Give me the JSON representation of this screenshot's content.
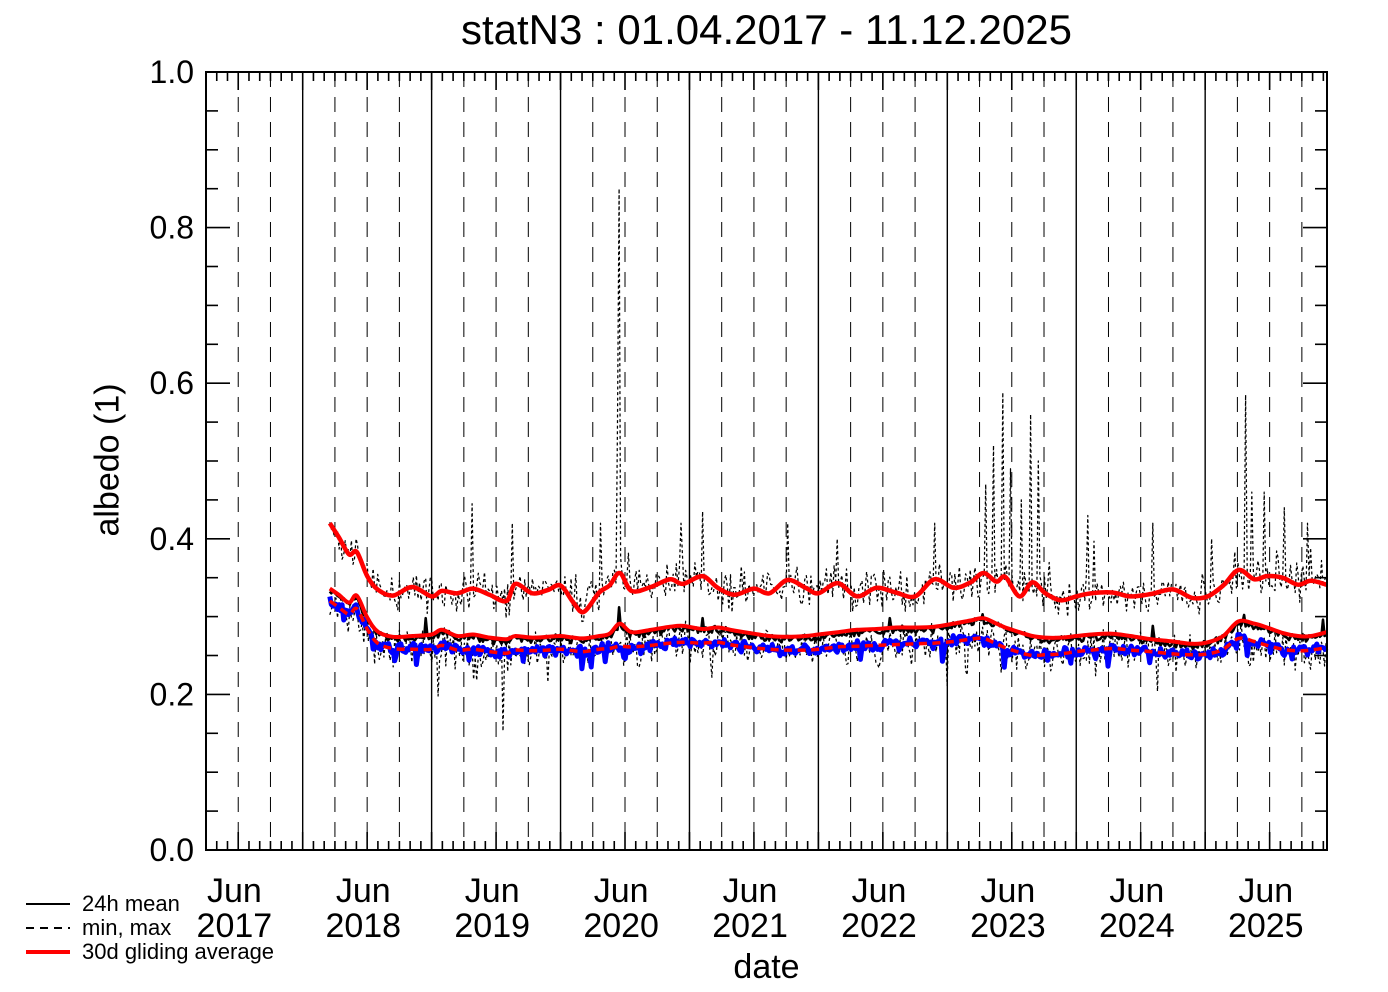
{
  "title": "statN3 : 01.04.2017 - 11.12.2025",
  "axes": {
    "x_label": "date",
    "y_label": "albedo (1)"
  },
  "legend": [
    {
      "label": "24h mean",
      "color": "#000000",
      "style": "solid"
    },
    {
      "label": "min, max",
      "color": "#000000",
      "style": "dashed"
    },
    {
      "label": "30d gliding average",
      "color": "#ff0000",
      "style": "solid"
    }
  ],
  "colors": {
    "mean_line": "#000000",
    "minmax_line": "#000000",
    "gliding_average": "#ff0000",
    "unlabeled_blue_line": "#0000ff",
    "background": "#ffffff"
  },
  "chart_data": {
    "type": "line",
    "title": "statN3 : 01.04.2017 - 11.12.2025",
    "xlabel": "date",
    "ylabel": "albedo (1)",
    "x_range_years": [
      2017.25,
      2025.945
    ],
    "ylim": [
      0,
      1
    ],
    "grid": "vertical only: solid line at each Jan 1, dashed lines at Apr/Jul/Oct 1; no horizontal gridlines",
    "legend_position": "below plot, bottom-left",
    "y_ticks": [
      {
        "v": 0.0,
        "label": "0.0"
      },
      {
        "v": 0.2,
        "label": "0.2"
      },
      {
        "v": 0.4,
        "label": "0.4"
      },
      {
        "v": 0.6,
        "label": "0.6"
      },
      {
        "v": 0.8,
        "label": "0.8"
      },
      {
        "v": 1.0,
        "label": "1.0"
      }
    ],
    "y_minor_step": 0.05,
    "x_ticks": [
      {
        "t": 2017.47,
        "month": "Jun",
        "year": "2017"
      },
      {
        "t": 2018.47,
        "month": "Jun",
        "year": "2018"
      },
      {
        "t": 2019.47,
        "month": "Jun",
        "year": "2019"
      },
      {
        "t": 2020.47,
        "month": "Jun",
        "year": "2020"
      },
      {
        "t": 2021.47,
        "month": "Jun",
        "year": "2021"
      },
      {
        "t": 2022.47,
        "month": "Jun",
        "year": "2022"
      },
      {
        "t": 2023.47,
        "month": "Jun",
        "year": "2023"
      },
      {
        "t": 2024.47,
        "month": "Jun",
        "year": "2024"
      },
      {
        "t": 2025.47,
        "month": "Jun",
        "year": "2025"
      }
    ],
    "data_start_t": 2018.21,
    "data_end_t": 2025.94,
    "keyframes": {
      "t": [
        2018.21,
        2018.28,
        2018.36,
        2018.42,
        2018.5,
        2018.58,
        2018.7,
        2018.85,
        2019.0,
        2019.08,
        2019.2,
        2019.32,
        2019.45,
        2019.58,
        2019.65,
        2019.78,
        2019.9,
        2020.0,
        2020.1,
        2020.18,
        2020.3,
        2020.38,
        2020.46,
        2020.55,
        2020.7,
        2020.85,
        2020.95,
        2021.1,
        2021.22,
        2021.35,
        2021.5,
        2021.62,
        2021.76,
        2021.9,
        2022.0,
        2022.15,
        2022.3,
        2022.45,
        2022.6,
        2022.75,
        2022.9,
        2023.05,
        2023.18,
        2023.28,
        2023.38,
        2023.45,
        2023.56,
        2023.66,
        2023.76,
        2023.88,
        2024.0,
        2024.12,
        2024.28,
        2024.42,
        2024.58,
        2024.75,
        2024.9,
        2025.02,
        2025.14,
        2025.26,
        2025.38,
        2025.48,
        2025.6,
        2025.72,
        2025.82,
        2025.94
      ],
      "max": [
        0.42,
        0.402,
        0.38,
        0.383,
        0.352,
        0.335,
        0.327,
        0.338,
        0.326,
        0.333,
        0.33,
        0.336,
        0.328,
        0.32,
        0.342,
        0.33,
        0.334,
        0.34,
        0.318,
        0.306,
        0.331,
        0.34,
        0.356,
        0.333,
        0.338,
        0.348,
        0.342,
        0.352,
        0.337,
        0.328,
        0.336,
        0.33,
        0.347,
        0.337,
        0.33,
        0.343,
        0.326,
        0.337,
        0.331,
        0.326,
        0.348,
        0.337,
        0.344,
        0.356,
        0.345,
        0.351,
        0.326,
        0.344,
        0.33,
        0.321,
        0.326,
        0.33,
        0.331,
        0.326,
        0.329,
        0.335,
        0.324,
        0.326,
        0.34,
        0.36,
        0.348,
        0.352,
        0.35,
        0.341,
        0.346,
        0.341
      ],
      "mean": [
        0.333,
        0.325,
        0.315,
        0.324,
        0.296,
        0.278,
        0.271,
        0.272,
        0.274,
        0.28,
        0.272,
        0.274,
        0.27,
        0.268,
        0.272,
        0.27,
        0.271,
        0.272,
        0.27,
        0.269,
        0.272,
        0.275,
        0.288,
        0.277,
        0.28,
        0.284,
        0.285,
        0.281,
        0.283,
        0.279,
        0.275,
        0.272,
        0.271,
        0.272,
        0.274,
        0.277,
        0.28,
        0.281,
        0.283,
        0.283,
        0.284,
        0.288,
        0.292,
        0.295,
        0.288,
        0.283,
        0.277,
        0.272,
        0.27,
        0.27,
        0.272,
        0.274,
        0.275,
        0.272,
        0.268,
        0.265,
        0.262,
        0.264,
        0.272,
        0.291,
        0.288,
        0.283,
        0.276,
        0.272,
        0.272,
        0.277
      ],
      "min": [
        0.32,
        0.312,
        0.303,
        0.31,
        0.284,
        0.266,
        0.259,
        0.258,
        0.258,
        0.263,
        0.257,
        0.258,
        0.255,
        0.253,
        0.257,
        0.256,
        0.257,
        0.258,
        0.256,
        0.255,
        0.258,
        0.259,
        0.262,
        0.261,
        0.263,
        0.266,
        0.267,
        0.266,
        0.267,
        0.263,
        0.26,
        0.258,
        0.257,
        0.257,
        0.258,
        0.261,
        0.262,
        0.263,
        0.264,
        0.265,
        0.266,
        0.268,
        0.271,
        0.272,
        0.265,
        0.26,
        0.254,
        0.25,
        0.251,
        0.252,
        0.255,
        0.257,
        0.259,
        0.257,
        0.255,
        0.252,
        0.251,
        0.252,
        0.258,
        0.272,
        0.268,
        0.263,
        0.258,
        0.256,
        0.257,
        0.26
      ]
    },
    "spikes": {
      "max_spikes": [
        [
          2019.32,
          0.445
        ],
        [
          2019.63,
          0.42
        ],
        [
          2020.31,
          0.42
        ],
        [
          2020.44,
          0.55
        ],
        [
          2020.455,
          0.85
        ],
        [
          2020.93,
          0.42
        ],
        [
          2021.1,
          0.435
        ],
        [
          2021.76,
          0.42
        ],
        [
          2022.15,
          0.4
        ],
        [
          2022.9,
          0.42
        ],
        [
          2023.3,
          0.47
        ],
        [
          2023.36,
          0.52
        ],
        [
          2023.43,
          0.588
        ],
        [
          2023.49,
          0.49
        ],
        [
          2023.575,
          0.45
        ],
        [
          2023.64,
          0.56
        ],
        [
          2023.7,
          0.5
        ],
        [
          2024.09,
          0.43
        ],
        [
          2024.6,
          0.42
        ],
        [
          2025.05,
          0.4
        ],
        [
          2025.31,
          0.585
        ],
        [
          2025.36,
          0.46
        ],
        [
          2025.46,
          0.46
        ],
        [
          2025.61,
          0.44
        ],
        [
          2025.8,
          0.42
        ]
      ],
      "min_dips": [
        [
          2018.6,
          0.245
        ],
        [
          2019.05,
          0.198
        ],
        [
          2019.35,
          0.218
        ],
        [
          2019.56,
          0.153
        ],
        [
          2020.6,
          0.235
        ],
        [
          2021.17,
          0.222
        ],
        [
          2022.47,
          0.234
        ],
        [
          2022.72,
          0.238
        ],
        [
          2023.15,
          0.225
        ],
        [
          2023.42,
          0.228
        ],
        [
          2024.1,
          0.24
        ],
        [
          2024.63,
          0.204
        ],
        [
          2025.35,
          0.238
        ],
        [
          2025.88,
          0.245
        ]
      ],
      "mean_spikes": [
        [
          2018.95,
          0.298
        ],
        [
          2020.455,
          0.312
        ],
        [
          2021.1,
          0.298
        ],
        [
          2022.55,
          0.298
        ],
        [
          2023.27,
          0.303
        ],
        [
          2024.6,
          0.288
        ],
        [
          2025.3,
          0.302
        ],
        [
          2025.91,
          0.296
        ]
      ],
      "blue_dips": [
        [
          2020.5,
          0.246
        ],
        [
          2023.44,
          0.235
        ],
        [
          2024.15,
          0.246
        ],
        [
          2025.33,
          0.25
        ]
      ]
    },
    "series": [
      {
        "name": "daily-max",
        "legend": "min, max",
        "kind": "noisy",
        "base": "max",
        "color": "#000000",
        "width": 1.25,
        "dash": "3 2.6",
        "amp": 0.02,
        "burst": 0.05,
        "spikes": "max_spikes"
      },
      {
        "name": "daily-min",
        "legend": "min, max",
        "kind": "noisy",
        "base": "min",
        "color": "#000000",
        "width": 1.25,
        "dash": "3 2.6",
        "amp": 0.02,
        "burst": -0.045,
        "spikes": "min_dips"
      },
      {
        "name": "24h-mean",
        "legend": "24h mean",
        "kind": "noisy",
        "base": "mean",
        "color": "#000000",
        "width": 2.6,
        "amp": 0.004,
        "burst": 0,
        "spikes": "mean_spikes"
      },
      {
        "name": "unlabeled-blue",
        "legend": "",
        "kind": "noisy",
        "base": "min",
        "color": "#0000ff",
        "width": 5,
        "amp": 0.006,
        "burst": -0.02,
        "spikes": "blue_dips"
      },
      {
        "name": "30d-gliding-average-of-min",
        "legend": "30d gliding average",
        "kind": "smooth",
        "base": "min",
        "color": "#ff0000",
        "width": 3.5,
        "dash": "8 5.5",
        "dv": 0
      },
      {
        "name": "30d-gliding-average-of-mean",
        "legend": "30d gliding average",
        "kind": "smooth",
        "base": "mean",
        "color": "#ff0000",
        "width": 4,
        "dv": 0.003
      },
      {
        "name": "30d-gliding-average-of-max",
        "legend": "30d gliding average",
        "kind": "smooth",
        "base": "max",
        "color": "#ff0000",
        "width": 4.5,
        "dv": 0
      }
    ]
  }
}
